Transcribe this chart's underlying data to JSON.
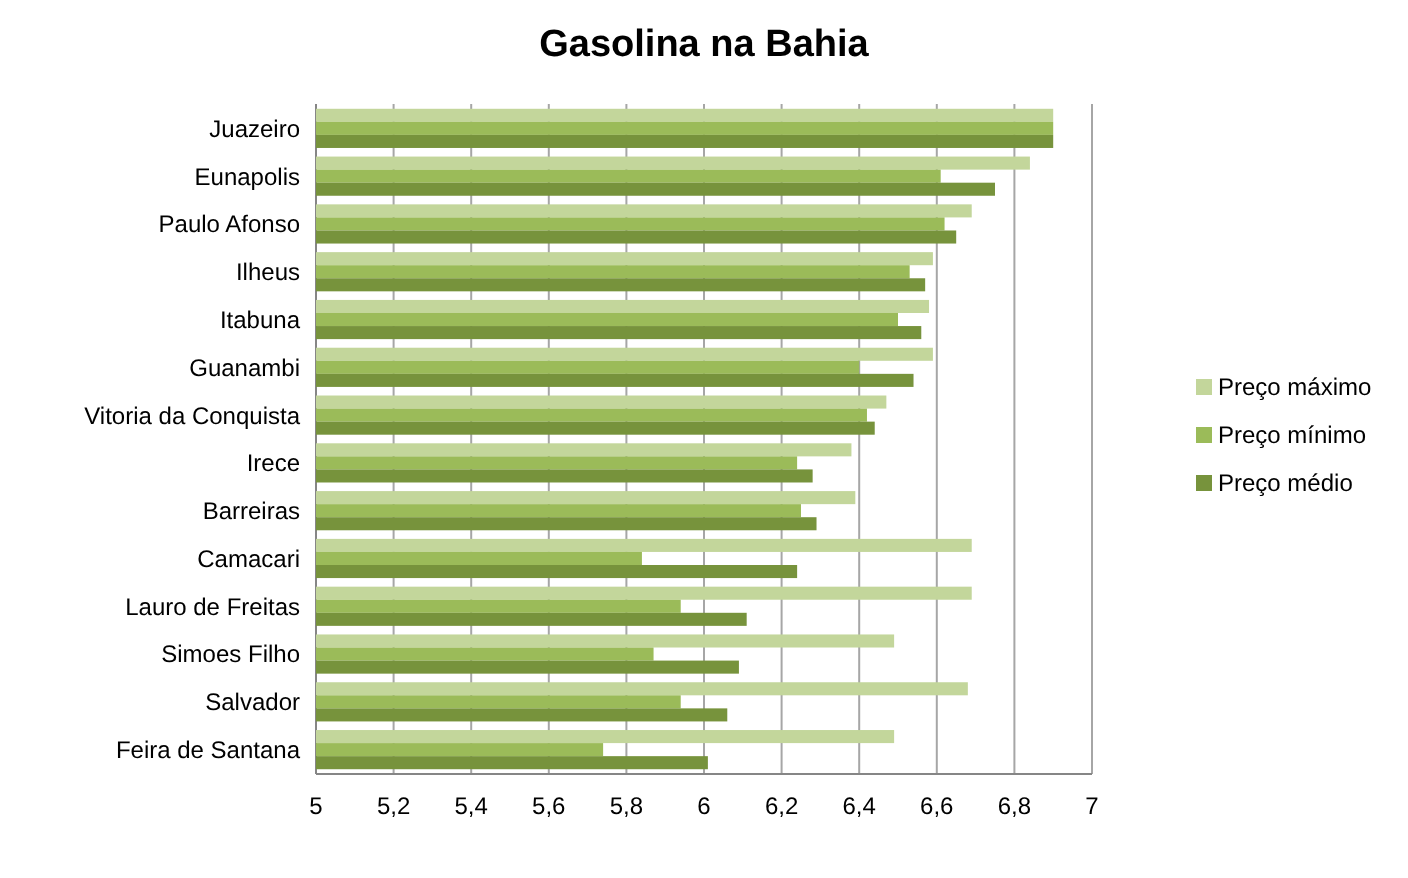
{
  "chart_data": {
    "type": "bar",
    "orientation": "horizontal",
    "title": "Gasolina na Bahia",
    "categories": [
      "Juazeiro",
      "Eunapolis",
      "Paulo Afonso",
      "Ilheus",
      "Itabuna",
      "Guanambi",
      "Vitoria da Conquista",
      "Irece",
      "Barreiras",
      "Camacari",
      "Lauro de Freitas",
      "Simoes Filho",
      "Salvador",
      "Feira de Santana"
    ],
    "series": [
      {
        "name": "Preço máximo",
        "color": "#c3d69b",
        "values": [
          6.9,
          6.84,
          6.69,
          6.59,
          6.58,
          6.59,
          6.47,
          6.38,
          6.39,
          6.69,
          6.69,
          6.49,
          6.68,
          6.49
        ]
      },
      {
        "name": "Preço mínimo",
        "color": "#9bbb59",
        "values": [
          6.9,
          6.61,
          6.62,
          6.53,
          6.5,
          6.4,
          6.42,
          6.24,
          6.25,
          5.84,
          5.94,
          5.87,
          5.94,
          5.74
        ]
      },
      {
        "name": "Preço médio",
        "color": "#77933c",
        "values": [
          6.9,
          6.75,
          6.65,
          6.57,
          6.56,
          6.54,
          6.44,
          6.28,
          6.29,
          6.24,
          6.11,
          6.09,
          6.06,
          6.01
        ]
      }
    ],
    "xlim": [
      5,
      7
    ],
    "xticks": [
      5,
      {
        "value": 5.2,
        "label": "5,2"
      },
      {
        "value": 5.4,
        "label": "5,4"
      },
      {
        "value": 5.6,
        "label": "5,6"
      },
      {
        "value": 5.8,
        "label": "5,8"
      },
      6,
      {
        "value": 6.2,
        "label": "6,2"
      },
      {
        "value": 6.4,
        "label": "6,4"
      },
      {
        "value": 6.6,
        "label": "6,6"
      },
      {
        "value": 6.8,
        "label": "6,8"
      },
      7
    ],
    "grid": "x",
    "legend": "right"
  }
}
